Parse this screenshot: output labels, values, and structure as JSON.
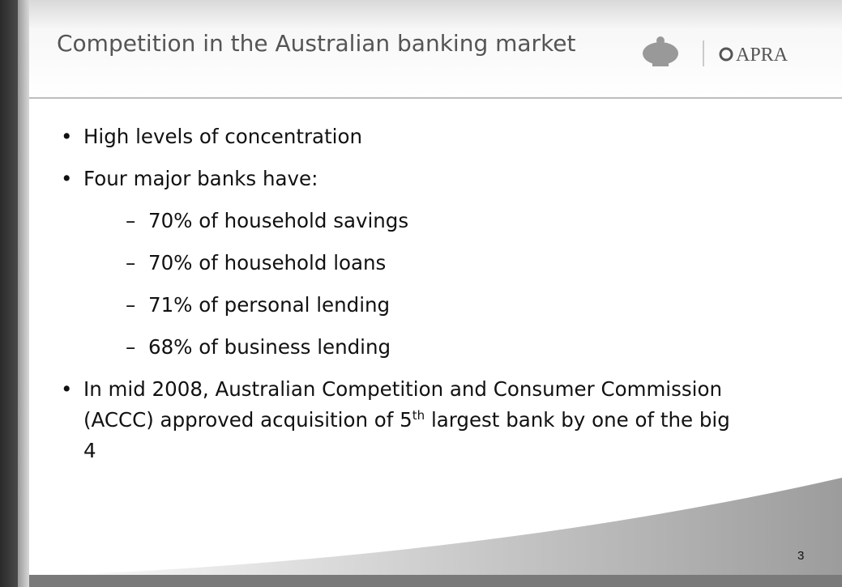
{
  "header": {
    "title": "Competition in the Australian banking market",
    "logo_text": "APRA"
  },
  "bullets": [
    {
      "text": "High levels of concentration"
    },
    {
      "text": "Four major banks have:",
      "sub": [
        "70% of household savings",
        "70% of household loans",
        "71% of personal lending",
        "68% of business lending"
      ]
    },
    {
      "parts": [
        "In mid 2008, Australian Competition and Consumer Commission (ACCC) approved acquisition of 5",
        "th",
        " largest bank by one of the big 4"
      ]
    }
  ],
  "page_number": "3"
}
